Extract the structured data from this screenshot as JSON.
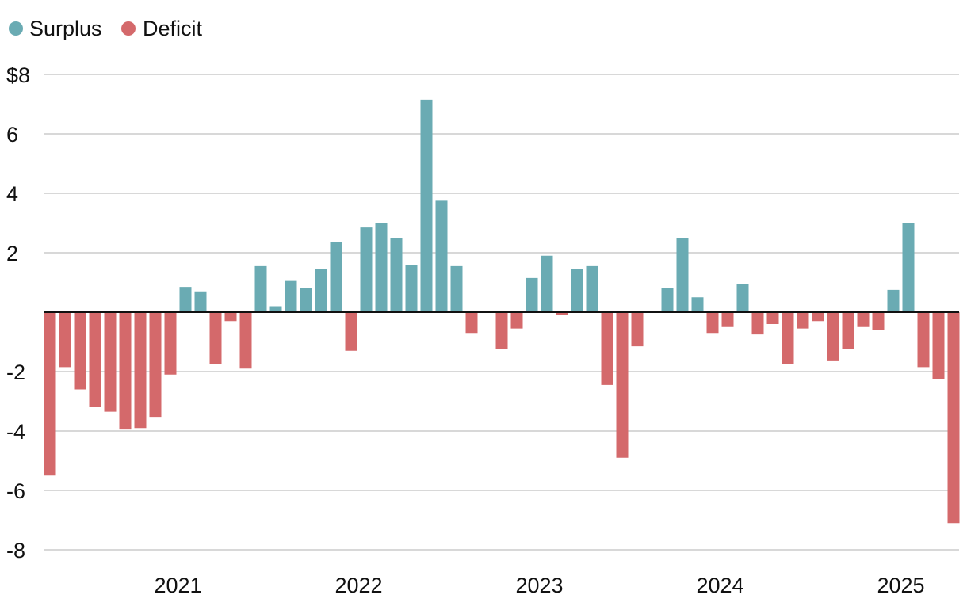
{
  "colors": {
    "surplus": "#6aabb3",
    "deficit": "#d4696b",
    "grid": "#cccccc",
    "zero": "#111111",
    "text": "#111111"
  },
  "legend": [
    {
      "label": "Surplus",
      "color": "#6aabb3"
    },
    {
      "label": "Deficit",
      "color": "#d4696b"
    }
  ],
  "chart_data": {
    "type": "bar",
    "title": "",
    "xlabel": "",
    "ylabel": "",
    "ylim": [
      -8,
      8
    ],
    "grid": true,
    "legend_position": "top-left",
    "y_ticks": [
      {
        "value": 8,
        "label": "$8"
      },
      {
        "value": 6,
        "label": "6"
      },
      {
        "value": 4,
        "label": "4"
      },
      {
        "value": 2,
        "label": "2"
      },
      {
        "value": -2,
        "label": "-2"
      },
      {
        "value": -4,
        "label": "-4"
      },
      {
        "value": -6,
        "label": "-6"
      },
      {
        "value": -8,
        "label": "-8"
      }
    ],
    "x_ticks": [
      {
        "index": 9,
        "label": "2021"
      },
      {
        "index": 21,
        "label": "2022"
      },
      {
        "index": 33,
        "label": "2023"
      },
      {
        "index": 45,
        "label": "2024"
      },
      {
        "index": 57,
        "label": "2025"
      }
    ],
    "series": [
      {
        "values": [
          -5.5,
          -1.85,
          -2.6,
          -3.2,
          -3.35,
          -3.95,
          -3.9,
          -3.55,
          -2.1,
          0.85,
          0.7,
          -1.75,
          -0.3,
          -1.9,
          1.55,
          0.2,
          1.05,
          0.8,
          1.45,
          2.35,
          -1.3,
          2.85,
          3.0,
          2.5,
          1.6,
          7.15,
          3.75,
          1.55,
          -0.7,
          0.05,
          -1.25,
          -0.55,
          1.15,
          1.9,
          -0.1,
          1.45,
          1.55,
          -2.45,
          -4.9,
          -1.15,
          0.0,
          0.8,
          2.5,
          0.5,
          -0.7,
          -0.5,
          0.95,
          -0.75,
          -0.4,
          -1.75,
          -0.55,
          -0.3,
          -1.65,
          -1.25,
          -0.5,
          -0.6,
          0.75,
          3.0,
          -1.85,
          -2.25,
          -7.1
        ]
      }
    ]
  }
}
